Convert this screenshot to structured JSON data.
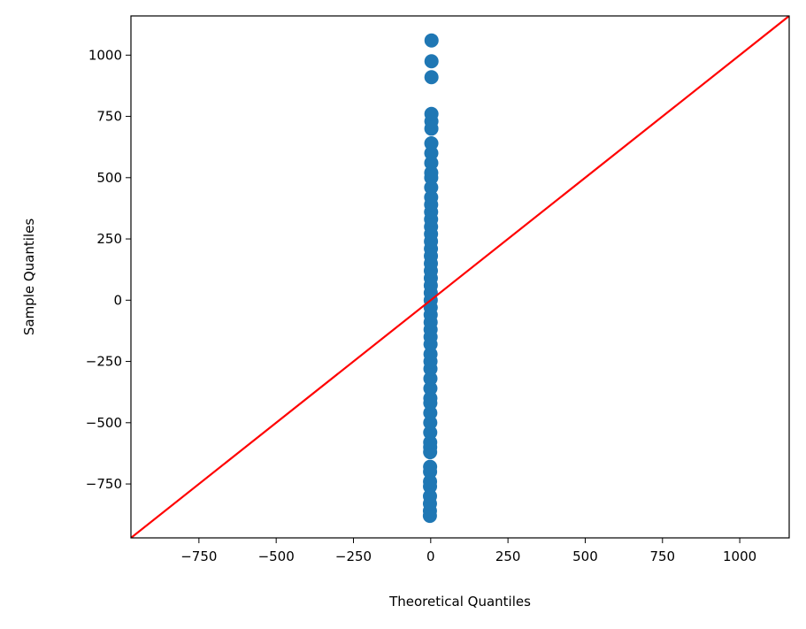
{
  "chart_data": {
    "type": "scatter",
    "xlabel": "Theoretical Quantiles",
    "ylabel": "Sample Quantiles",
    "series": [
      {
        "color": "#1f77b4",
        "x": [
          -2.65,
          -2.55,
          -2.45,
          -2.35,
          -2.25,
          -2.15,
          -2.05,
          -1.95,
          -1.85,
          -1.75,
          -1.65,
          -1.55,
          -1.45,
          -1.35,
          -1.25,
          -1.15,
          -1.05,
          -0.95,
          -0.85,
          -0.75,
          -0.65,
          -0.55,
          -0.45,
          -0.35,
          -0.25,
          -0.15,
          -0.05,
          0.05,
          0.15,
          0.25,
          0.35,
          0.45,
          0.55,
          0.65,
          0.75,
          0.85,
          0.95,
          1.05,
          1.15,
          1.25,
          1.35,
          1.45,
          1.55,
          1.65,
          1.75,
          1.85,
          1.95,
          2.05,
          2.15,
          2.25,
          2.35,
          2.45,
          2.55,
          2.65
        ],
        "values": [
          -880,
          -860,
          -830,
          -800,
          -760,
          -740,
          -700,
          -680,
          -620,
          -600,
          -580,
          -540,
          -500,
          -460,
          -420,
          -400,
          -360,
          -320,
          -280,
          -250,
          -220,
          -180,
          -150,
          -120,
          -90,
          -60,
          -30,
          0,
          30,
          60,
          90,
          120,
          150,
          180,
          210,
          240,
          270,
          300,
          330,
          360,
          390,
          420,
          460,
          500,
          520,
          560,
          600,
          640,
          700,
          730,
          760,
          910,
          975,
          1060
        ]
      }
    ],
    "reference_line": {
      "color": "#ff0000",
      "x": [
        -970,
        1160
      ],
      "y": [
        -970,
        1160
      ]
    },
    "xlim": [
      -970,
      1160
    ],
    "ylim": [
      -970,
      1160
    ],
    "xticks": [
      {
        "value": -750,
        "label": "−750"
      },
      {
        "value": -500,
        "label": "−500"
      },
      {
        "value": -250,
        "label": "−250"
      },
      0,
      250,
      500,
      750,
      1000
    ],
    "yticks": [
      {
        "value": -750,
        "label": "−750"
      },
      {
        "value": -500,
        "label": "−500"
      },
      {
        "value": -250,
        "label": "−250"
      },
      0,
      250,
      500,
      750,
      1000
    ],
    "grid": false
  }
}
